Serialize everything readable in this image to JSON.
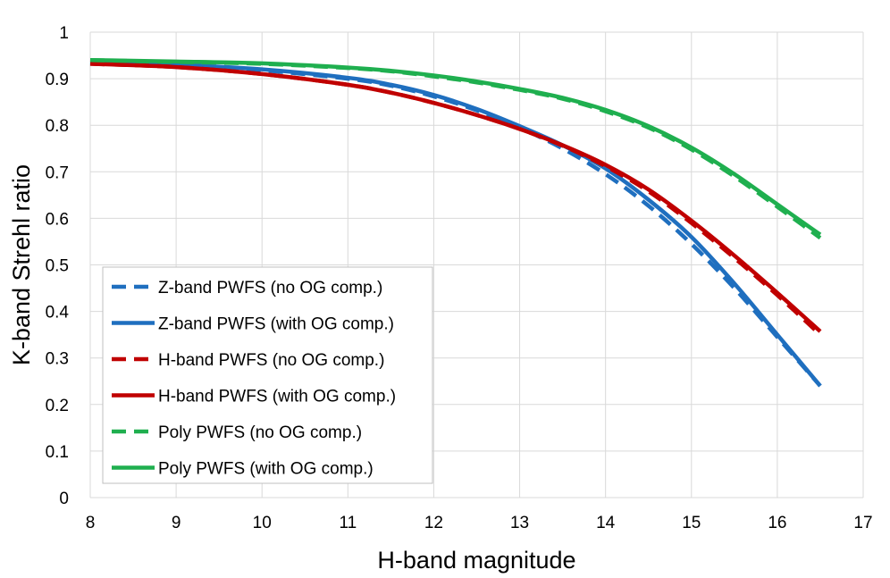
{
  "chart_data": {
    "type": "line",
    "title": "",
    "xlabel": "H-band magnitude",
    "ylabel": "K-band Strehl ratio",
    "xlim": [
      8,
      17
    ],
    "ylim": [
      0,
      1
    ],
    "xticks": [
      8,
      9,
      10,
      11,
      12,
      13,
      14,
      15,
      16,
      17
    ],
    "yticks": [
      0,
      0.1,
      0.2,
      0.3,
      0.4,
      0.5,
      0.6,
      0.7,
      0.8,
      0.9,
      1
    ],
    "ytick_labels": [
      "0",
      "0.1",
      "0.2",
      "0.3",
      "0.4",
      "0.5",
      "0.6",
      "0.7",
      "0.8",
      "0.9",
      "1"
    ],
    "grid": true,
    "legend_position": "lower-left",
    "series": [
      {
        "name": "Z-band PWFS (no OG comp.)",
        "color": "#1F6FBF",
        "dash": "dashed",
        "x": [
          8,
          9,
          10,
          11,
          11.5,
          12,
          12.5,
          13,
          13.5,
          14,
          14.5,
          15,
          15.5,
          16,
          16.5
        ],
        "y": [
          0.935,
          0.928,
          0.918,
          0.9,
          0.885,
          0.862,
          0.832,
          0.795,
          0.75,
          0.695,
          0.627,
          0.545,
          0.45,
          0.345,
          0.24
        ]
      },
      {
        "name": "Z-band PWFS (with OG comp.)",
        "color": "#1F6FBF",
        "dash": "solid",
        "x": [
          8,
          9,
          10,
          11,
          11.5,
          12,
          12.5,
          13,
          13.5,
          14,
          14.5,
          15,
          15.5,
          16,
          16.5
        ],
        "y": [
          0.935,
          0.93,
          0.92,
          0.902,
          0.887,
          0.865,
          0.835,
          0.798,
          0.757,
          0.707,
          0.64,
          0.56,
          0.46,
          0.35,
          0.24
        ]
      },
      {
        "name": "H-band PWFS (no OG comp.)",
        "color": "#C00000",
        "dash": "dashed",
        "x": [
          8,
          9,
          10,
          11,
          11.5,
          12,
          12.5,
          13,
          13.5,
          14,
          14.5,
          15,
          15.5,
          16,
          16.5
        ],
        "y": [
          0.932,
          0.925,
          0.91,
          0.887,
          0.87,
          0.848,
          0.822,
          0.792,
          0.756,
          0.712,
          0.658,
          0.59,
          0.515,
          0.435,
          0.35
        ]
      },
      {
        "name": "H-band PWFS (with OG comp.)",
        "color": "#C00000",
        "dash": "solid",
        "x": [
          8,
          9,
          10,
          11,
          11.5,
          12,
          12.5,
          13,
          13.5,
          14,
          14.5,
          15,
          15.5,
          16,
          16.5
        ],
        "y": [
          0.932,
          0.925,
          0.91,
          0.887,
          0.87,
          0.848,
          0.822,
          0.792,
          0.757,
          0.715,
          0.662,
          0.595,
          0.52,
          0.44,
          0.357
        ]
      },
      {
        "name": "Poly PWFS (no OG comp.)",
        "color": "#1FAF4F",
        "dash": "dashed",
        "x": [
          8,
          9,
          10,
          11,
          11.5,
          12,
          12.5,
          13,
          13.5,
          14,
          14.5,
          15,
          15.5,
          16,
          16.5
        ],
        "y": [
          0.94,
          0.936,
          0.932,
          0.923,
          0.916,
          0.905,
          0.892,
          0.876,
          0.857,
          0.83,
          0.795,
          0.748,
          0.69,
          0.625,
          0.558
        ]
      },
      {
        "name": "Poly PWFS (with OG comp.)",
        "color": "#1FAF4F",
        "dash": "solid",
        "x": [
          8,
          9,
          10,
          11,
          11.5,
          12,
          12.5,
          13,
          13.5,
          14,
          14.5,
          15,
          15.5,
          16,
          16.5
        ],
        "y": [
          0.94,
          0.937,
          0.933,
          0.924,
          0.917,
          0.907,
          0.894,
          0.878,
          0.859,
          0.833,
          0.798,
          0.752,
          0.695,
          0.63,
          0.565
        ]
      }
    ]
  }
}
